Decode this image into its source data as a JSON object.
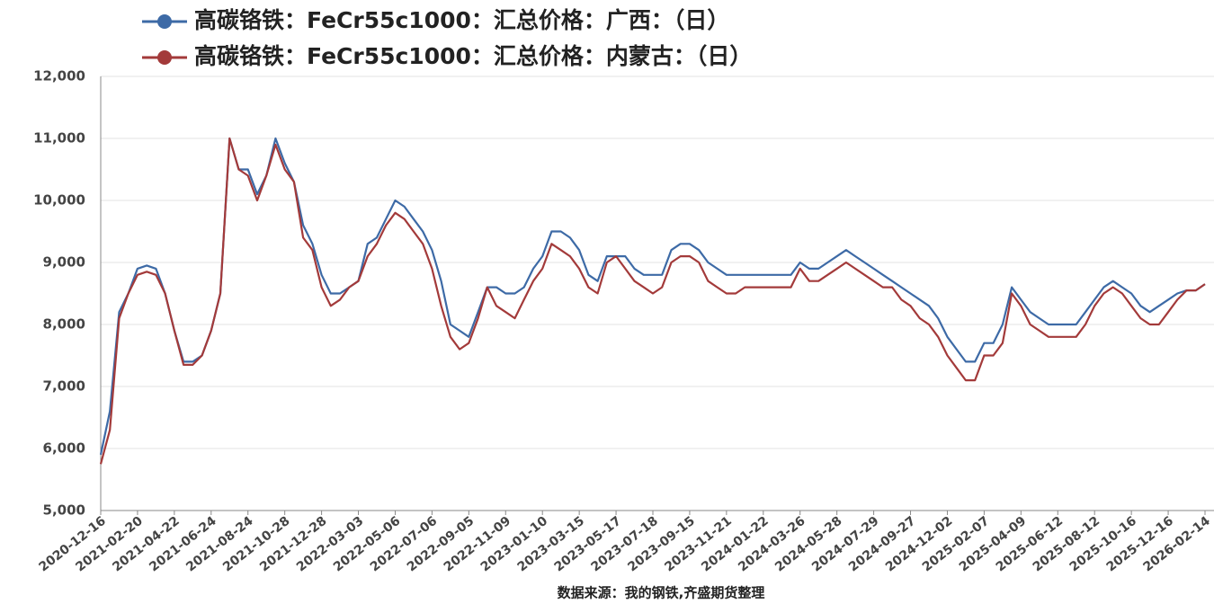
{
  "chart_data": {
    "type": "line",
    "source": "数据来源：我的钢铁,齐盛期货整理",
    "categories": [
      "2020-12-16",
      null,
      null,
      null,
      "2021-02-20",
      null,
      null,
      null,
      "2021-04-22",
      null,
      null,
      null,
      "2021-06-24",
      null,
      null,
      null,
      "2021-08-24",
      null,
      null,
      null,
      "2021-10-28",
      null,
      null,
      null,
      "2021-12-28",
      null,
      null,
      null,
      "2022-03-03",
      null,
      null,
      null,
      "2022-05-06",
      null,
      null,
      null,
      "2022-07-06",
      null,
      null,
      null,
      "2022-09-05",
      null,
      null,
      null,
      "2022-11-09",
      null,
      null,
      null,
      "2023-01-10",
      null,
      null,
      null,
      "2023-03-15",
      null,
      null,
      null,
      "2023-05-17",
      null,
      null,
      null,
      "2023-07-18",
      null,
      null,
      null,
      "2023-09-15",
      null,
      null,
      null,
      "2023-11-21",
      null,
      null,
      null,
      "2024-01-22",
      null,
      null,
      null,
      "2024-03-26",
      null,
      null,
      null,
      "2024-05-28",
      null,
      null,
      null,
      "2024-07-29",
      null,
      null,
      null,
      "2024-09-27",
      null,
      null,
      null,
      "2024-12-02",
      null,
      null,
      null,
      "2025-02-07",
      null,
      null,
      null,
      "2025-04-09",
      null,
      null,
      null,
      "2025-06-12",
      null,
      null,
      null,
      "2025-08-12",
      null,
      null,
      null,
      "2025-10-16",
      null,
      null,
      null,
      "2025-12-16",
      null,
      null,
      null,
      "2026-02-14"
    ],
    "series": [
      {
        "name": "高碳铬铁：FeCr55c1000：汇总价格：广西：（日）",
        "color": "#3d6aa6",
        "values": [
          5900,
          6600,
          8200,
          8500,
          8900,
          8950,
          8900,
          8500,
          7900,
          7400,
          7400,
          7500,
          7900,
          8500,
          11000,
          10500,
          10500,
          10100,
          10400,
          11000,
          10600,
          10300,
          9600,
          9300,
          8800,
          8500,
          8500,
          8600,
          8700,
          9300,
          9400,
          9700,
          10000,
          9900,
          9700,
          9500,
          9200,
          8700,
          8000,
          7900,
          7800,
          8200,
          8600,
          8600,
          8500,
          8500,
          8600,
          8900,
          9100,
          9500,
          9500,
          9400,
          9200,
          8800,
          8700,
          9100,
          9100,
          9100,
          8900,
          8800,
          8800,
          8800,
          9200,
          9300,
          9300,
          9200,
          9000,
          8900,
          8800,
          8800,
          8800,
          8800,
          8800,
          8800,
          8800,
          8800,
          9000,
          8900,
          8900,
          9000,
          9100,
          9200,
          9100,
          9000,
          8900,
          8800,
          8700,
          8600,
          8500,
          8400,
          8300,
          8100,
          7800,
          7600,
          7400,
          7400,
          7700,
          7700,
          8000,
          8600,
          8400,
          8200,
          8100,
          8000,
          8000,
          8000,
          8000,
          8200,
          8400,
          8600,
          8700,
          8600,
          8500,
          8300,
          8200,
          8300,
          8400,
          8500,
          8550,
          8550,
          8650
        ]
      },
      {
        "name": "高碳铬铁：FeCr55c1000：汇总价格：内蒙古：（日）",
        "color": "#a33a3a",
        "values": [
          5750,
          6300,
          8100,
          8500,
          8800,
          8850,
          8800,
          8500,
          7900,
          7350,
          7350,
          7500,
          7900,
          8500,
          11000,
          10500,
          10400,
          10000,
          10400,
          10900,
          10500,
          10300,
          9400,
          9200,
          8600,
          8300,
          8400,
          8600,
          8700,
          9100,
          9300,
          9600,
          9800,
          9700,
          9500,
          9300,
          8900,
          8300,
          7800,
          7600,
          7700,
          8100,
          8600,
          8300,
          8200,
          8100,
          8400,
          8700,
          8900,
          9300,
          9200,
          9100,
          8900,
          8600,
          8500,
          9000,
          9100,
          8900,
          8700,
          8600,
          8500,
          8600,
          9000,
          9100,
          9100,
          9000,
          8700,
          8600,
          8500,
          8500,
          8600,
          8600,
          8600,
          8600,
          8600,
          8600,
          8900,
          8700,
          8700,
          8800,
          8900,
          9000,
          8900,
          8800,
          8700,
          8600,
          8600,
          8400,
          8300,
          8100,
          8000,
          7800,
          7500,
          7300,
          7100,
          7100,
          7500,
          7500,
          7700,
          8500,
          8300,
          8000,
          7900,
          7800,
          7800,
          7800,
          7800,
          8000,
          8300,
          8500,
          8600,
          8500,
          8300,
          8100,
          8000,
          8000,
          8200,
          8400,
          8550,
          8550,
          8650
        ]
      }
    ],
    "ylim": [
      5000,
      12000
    ],
    "yticks": [
      {
        "value": 5000,
        "label": "5,000"
      },
      {
        "value": 6000,
        "label": "6,000"
      },
      {
        "value": 7000,
        "label": "7,000"
      },
      {
        "value": 8000,
        "label": "8,000"
      },
      {
        "value": 9000,
        "label": "9,000"
      },
      {
        "value": 10000,
        "label": "10,000"
      },
      {
        "value": 11000,
        "label": "11,000"
      },
      {
        "value": 12000,
        "label": "12,000"
      }
    ],
    "grid": true
  }
}
